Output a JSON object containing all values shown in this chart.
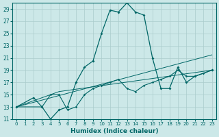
{
  "xlabel": "Humidex (Indice chaleur)",
  "bg_color": "#cce8e8",
  "grid_color": "#aacccc",
  "line_color": "#006666",
  "xlim": [
    -0.5,
    23.5
  ],
  "ylim": [
    11,
    30
  ],
  "yticks": [
    11,
    13,
    15,
    17,
    19,
    21,
    23,
    25,
    27,
    29
  ],
  "xticks": [
    0,
    1,
    2,
    3,
    4,
    5,
    6,
    7,
    8,
    9,
    10,
    11,
    12,
    13,
    14,
    15,
    16,
    17,
    18,
    19,
    20,
    21,
    22,
    23
  ],
  "series": [
    {
      "x": [
        0,
        2,
        3,
        4,
        5,
        6,
        7,
        8,
        9,
        10,
        11,
        12,
        13,
        14,
        15,
        16,
        17,
        18,
        19,
        20,
        21,
        23
      ],
      "y": [
        13,
        14.5,
        13,
        11,
        12.5,
        13,
        17,
        19.5,
        20.5,
        25,
        28.8,
        28.5,
        30,
        28.5,
        28,
        21,
        16,
        16,
        19.5,
        17,
        18,
        19
      ]
    },
    {
      "x": [
        0,
        3,
        4,
        5,
        6,
        7,
        8,
        9,
        10,
        11,
        12,
        13,
        14,
        15,
        16,
        17,
        18,
        19,
        20,
        21,
        22,
        23
      ],
      "y": [
        13,
        13,
        15,
        15,
        12.5,
        13,
        15,
        16,
        16.5,
        17,
        17.5,
        16,
        15.5,
        16.5,
        17,
        17.5,
        18,
        19,
        18,
        18,
        18.5,
        19
      ]
    },
    {
      "x": [
        0,
        5,
        23
      ],
      "y": [
        13,
        15.5,
        19
      ]
    },
    {
      "x": [
        0,
        23
      ],
      "y": [
        13,
        21.5
      ]
    }
  ]
}
